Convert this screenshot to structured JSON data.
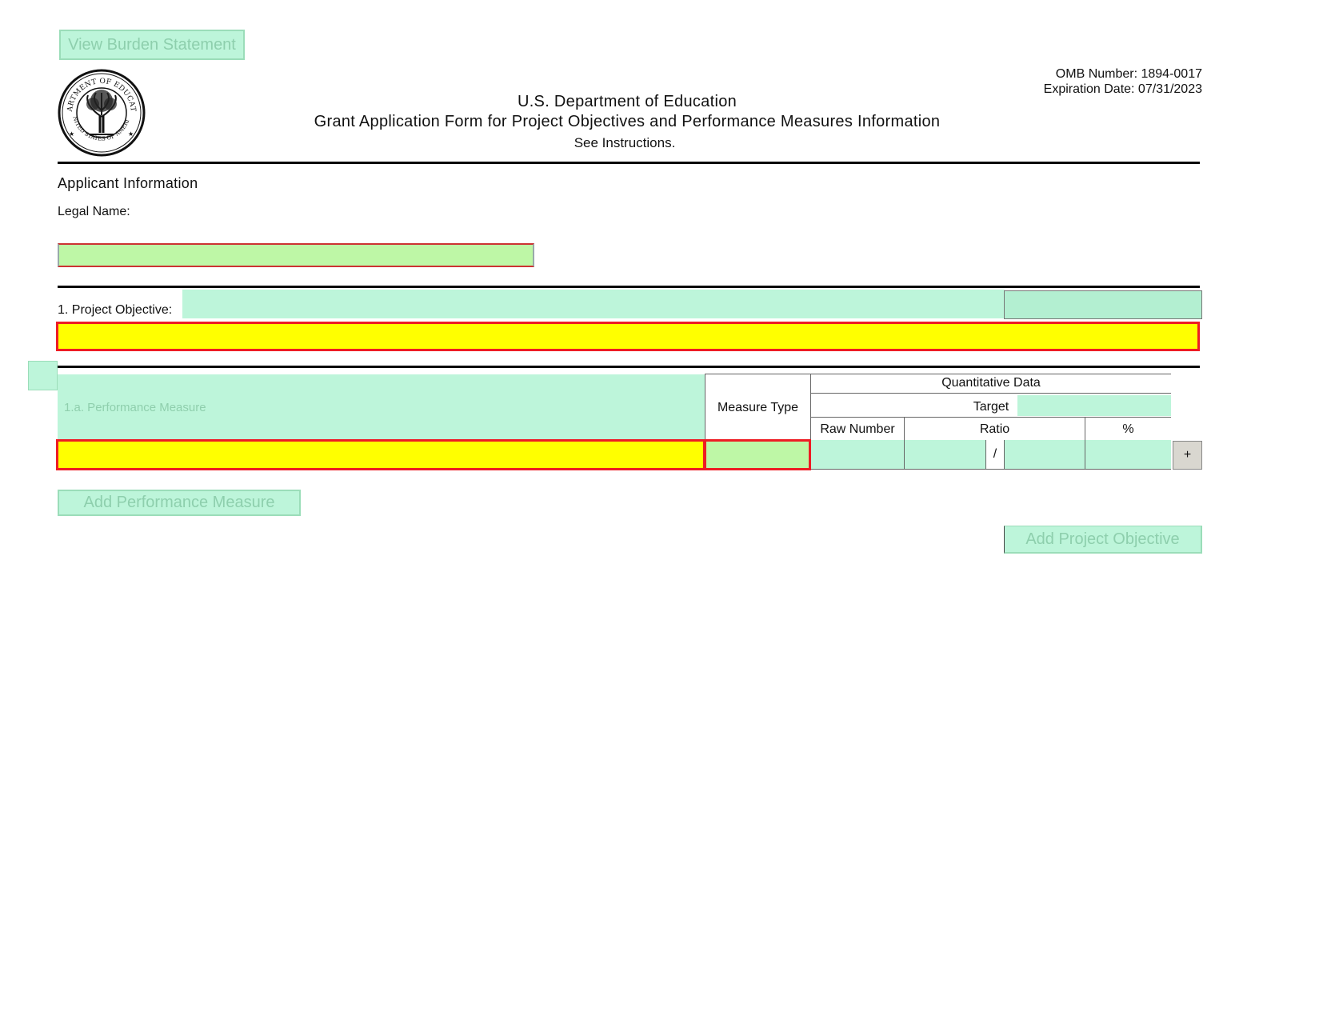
{
  "buttons": {
    "view_burden": "View Burden Statement",
    "add_performance_measure": "Add Performance Measure",
    "add_project_objective": "Add Project Objective",
    "plus": "+"
  },
  "omb": {
    "number": "OMB Number: 1894-0017",
    "expiration": "Expiration Date: 07/31/2023"
  },
  "header": {
    "agency": "U.S. Department of Education",
    "title": "Grant Application Form for Project Objectives and Performance Measures Information",
    "instructions": "See Instructions."
  },
  "seal": {
    "text_top": "DEPARTMENT OF EDUCATION",
    "text_bottom": "UNITED STATES OF AMERICA"
  },
  "applicant": {
    "section_title": "Applicant Information",
    "legal_name_label": "Legal Name:",
    "legal_name_value": ""
  },
  "objective": {
    "label": "1. Project Objective:",
    "value": ""
  },
  "performance": {
    "measure_placeholder": "1.a. Performance Measure",
    "measure_type_label": "Measure Type",
    "quant_label": "Quantitative Data",
    "target_label": "Target",
    "raw_number_label": "Raw Number",
    "ratio_label": "Ratio",
    "ratio_sep": "/",
    "percent_label": "%"
  },
  "colors": {
    "green_field": "#bdf5da",
    "yellow_required": "#ffff00",
    "required_border": "#ee1c24",
    "lime_field": "#bef7a6"
  }
}
